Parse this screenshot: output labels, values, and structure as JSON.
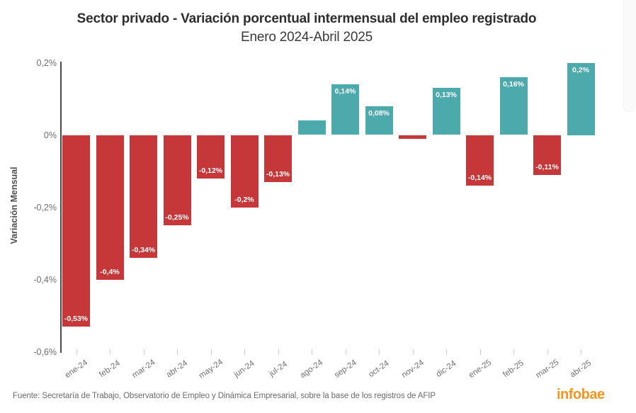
{
  "header": {
    "title": "Sector privado - Variación porcentual intermensual del empleo registrado",
    "subtitle": "Enero 2024-Abril 2025"
  },
  "y_axis": {
    "title": "Variación Mensual",
    "ticks": [
      {
        "label": "0,2%",
        "value": 0.2
      },
      {
        "label": "0%",
        "value": 0
      },
      {
        "label": "-0,2%",
        "value": -0.2
      },
      {
        "label": "-0,4%",
        "value": -0.4
      },
      {
        "label": "-0,6%",
        "value": -0.6
      }
    ]
  },
  "chart_data": {
    "type": "bar",
    "title": "Sector privado - Variación porcentual intermensual del empleo registrado",
    "subtitle": "Enero 2024-Abril 2025",
    "xlabel": "",
    "ylabel": "Variación Mensual",
    "ylim": [
      -0.6,
      0.2
    ],
    "grid": false,
    "legend": "none",
    "categories": [
      "ene-24",
      "feb-24",
      "mar-24",
      "abr-24",
      "may-24",
      "jun-24",
      "jul-24",
      "ago-24",
      "sep-24",
      "oct-24",
      "nov-24",
      "dic-24",
      "ene-25",
      "feb-25",
      "mar-25",
      "abr-25"
    ],
    "values": [
      -0.53,
      -0.4,
      -0.34,
      -0.25,
      -0.12,
      -0.2,
      -0.13,
      0.04,
      0.14,
      0.08,
      -0.01,
      0.13,
      -0.14,
      0.16,
      -0.11,
      0.2
    ],
    "data_labels": [
      "-0,53%",
      "-0,4%",
      "-0,34%",
      "-0,25%",
      "-0,12%",
      "-0,2%",
      "-0,13%",
      "",
      "0,14%",
      "0,08%",
      "",
      "0,13%",
      "-0,14%",
      "0,16%",
      "-0,11%",
      "0,2%"
    ],
    "colors": {
      "positive_bar": "#4caaad",
      "negative_bar": "#c63739"
    }
  },
  "footer": {
    "source": "Fuente: Secretaría de Trabajo, Observatorio de Empleo y Dinámica Empresarial, sobre la base de los registros de AFIP",
    "brand": "infobae",
    "brand_color": "#f7941d"
  }
}
